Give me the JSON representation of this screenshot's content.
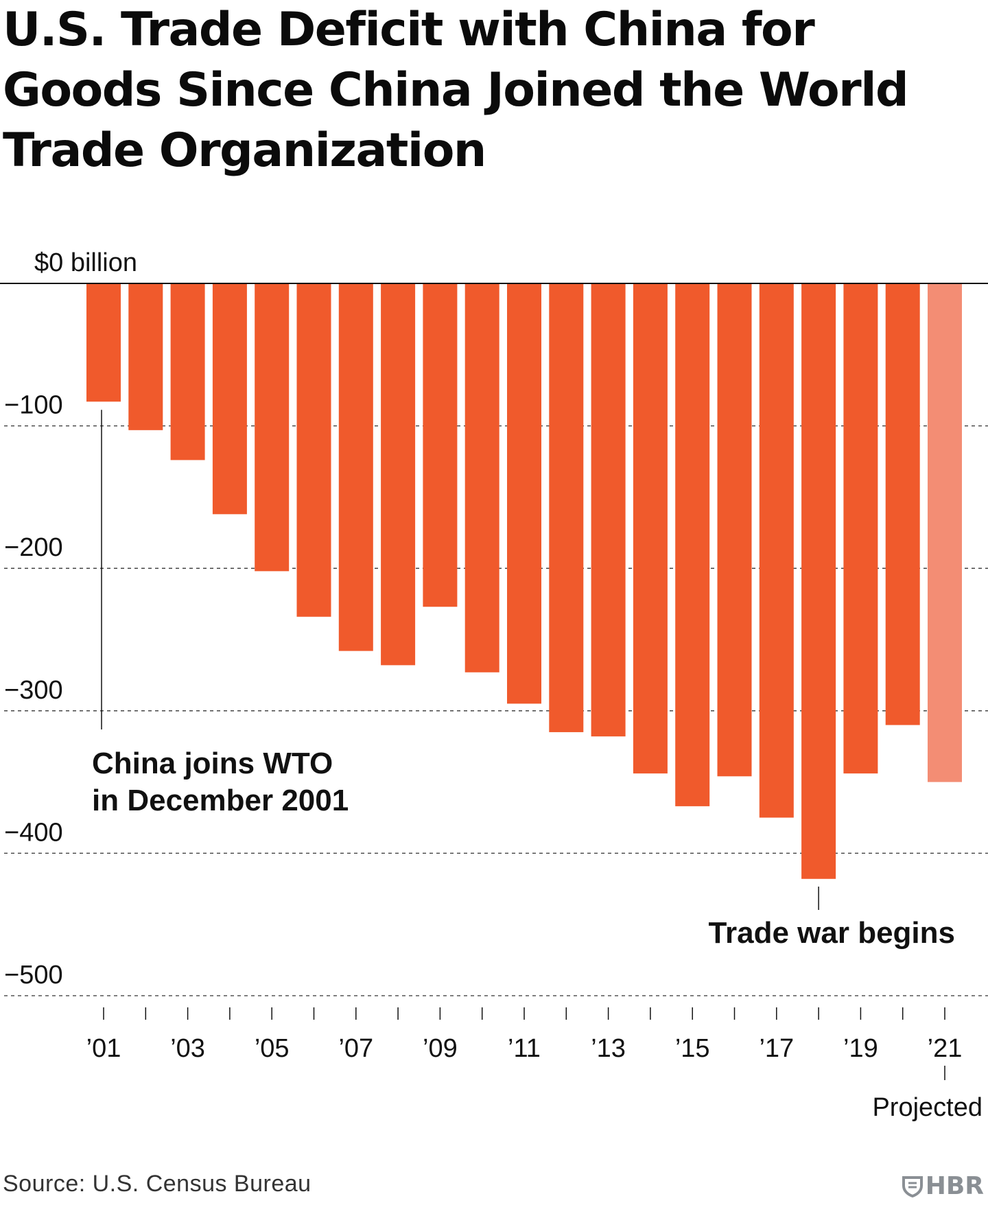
{
  "title": "U.S. Trade Deficit with China for Goods Since China Joined the World Trade Organization",
  "source": "Source: U.S. Census Bureau",
  "brand": {
    "text": "HBR",
    "icon": "hbr-shield-icon",
    "color": "#8a8f94"
  },
  "colors": {
    "bar": "#f05a2c",
    "projected_bar": "#f38d74",
    "axis": "#111111",
    "grid": "#333333"
  },
  "chart_data": {
    "type": "bar",
    "ylabel": "",
    "xlabel": "",
    "ylim": [
      -520,
      0
    ],
    "yticks": [
      0,
      -100,
      -200,
      -300,
      -400,
      -500
    ],
    "ytick_labels": [
      "$0 billion",
      "−100",
      "−200",
      "−300",
      "−400",
      "−500"
    ],
    "grid": "dashed horizontal",
    "categories": [
      "2001",
      "2002",
      "2003",
      "2004",
      "2005",
      "2006",
      "2007",
      "2008",
      "2009",
      "2010",
      "2011",
      "2012",
      "2013",
      "2014",
      "2015",
      "2016",
      "2017",
      "2018",
      "2019",
      "2020",
      "2021"
    ],
    "xtick_labels": [
      "’01",
      "",
      "’03",
      "",
      "’05",
      "",
      "’07",
      "",
      "’09",
      "",
      "’11",
      "",
      "’13",
      "",
      "’15",
      "",
      "’17",
      "",
      "’19",
      "",
      "’21"
    ],
    "values": [
      -83,
      -103,
      -124,
      -162,
      -202,
      -234,
      -258,
      -268,
      -227,
      -273,
      -295,
      -315,
      -318,
      -344,
      -367,
      -346,
      -375,
      -418,
      -344,
      -310,
      -350
    ],
    "projected": [
      false,
      false,
      false,
      false,
      false,
      false,
      false,
      false,
      false,
      false,
      false,
      false,
      false,
      false,
      false,
      false,
      false,
      false,
      false,
      false,
      true
    ],
    "annotations": [
      {
        "text_lines": [
          "China joins WTO",
          "in December 2001"
        ],
        "category": "2001"
      },
      {
        "text_lines": [
          "Trade war begins"
        ],
        "category": "2018"
      },
      {
        "text_lines": [
          "Projected"
        ],
        "category": "2021"
      }
    ]
  }
}
